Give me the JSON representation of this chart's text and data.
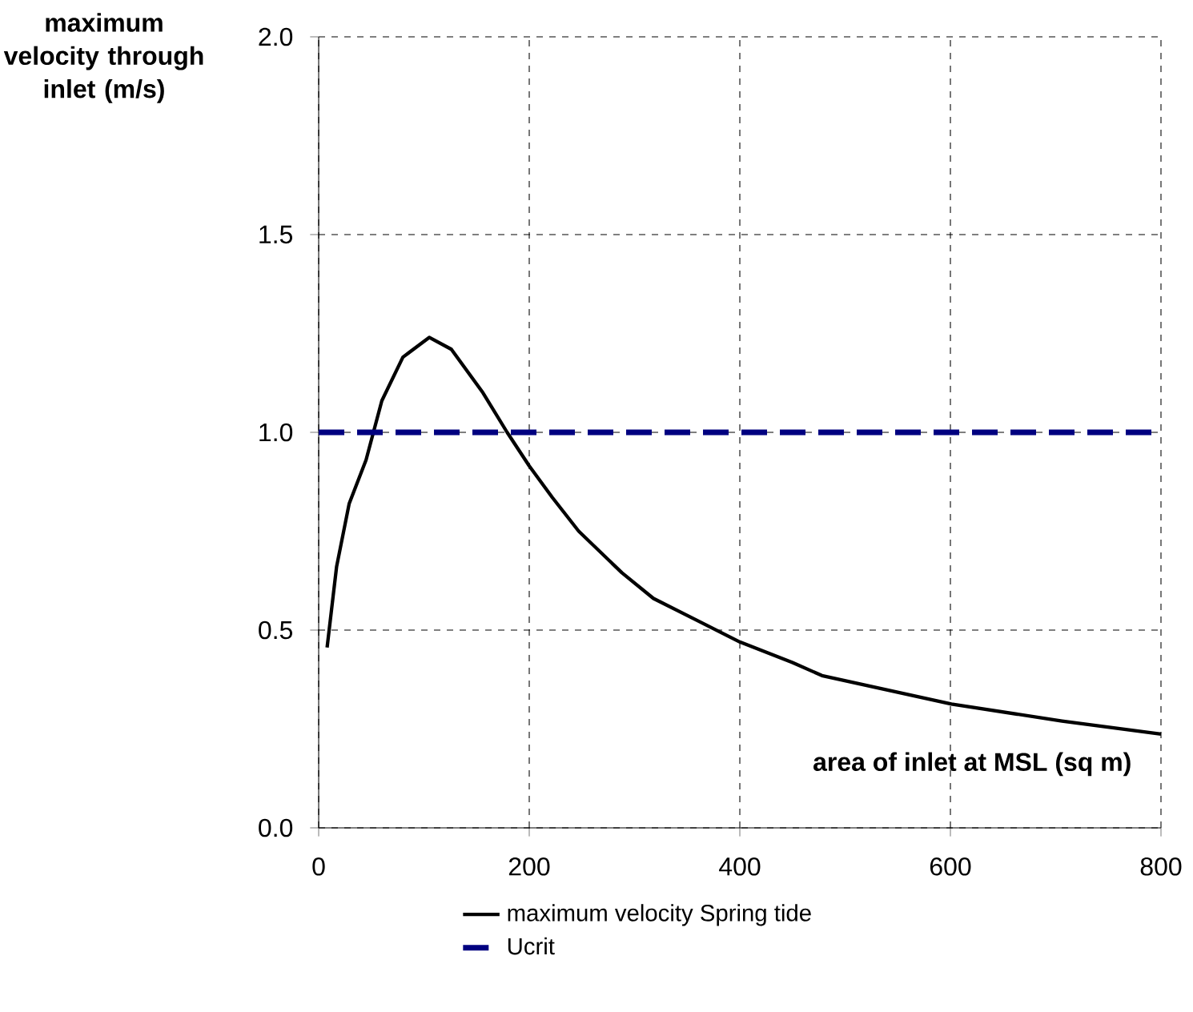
{
  "chart_data": {
    "type": "line",
    "xlabel": "area of inlet at MSL (sq m)",
    "ylabel": "maximum velocity through inlet (m/s)",
    "xlim": [
      0,
      800
    ],
    "xticks": [
      0,
      200,
      400,
      600,
      800
    ],
    "ylim": [
      0,
      2
    ],
    "yticks": [
      {
        "value": 0,
        "label": "0.0"
      },
      {
        "value": 0.5,
        "label": "0.5"
      },
      {
        "value": 1,
        "label": "1.0"
      },
      {
        "value": 1.5,
        "label": "1.5"
      },
      {
        "value": 2,
        "label": "2.0"
      }
    ],
    "grid": true,
    "legend": "bottom",
    "series": [
      {
        "name": "maximum velocity Spring tide",
        "color": "#000000",
        "line_style": "solid",
        "x": [
          8,
          17,
          29,
          45,
          60,
          80,
          105,
          126,
          156,
          179,
          200,
          222,
          247,
          288,
          318,
          359,
          400,
          450,
          478,
          601,
          706,
          800
        ],
        "values": [
          0.456,
          0.66,
          0.82,
          0.93,
          1.08,
          1.19,
          1.24,
          1.21,
          1.1,
          1.0,
          0.915,
          0.835,
          0.75,
          0.645,
          0.58,
          0.525,
          0.47,
          0.418,
          0.385,
          0.313,
          0.27,
          0.237
        ]
      }
    ],
    "ref_lines": [
      {
        "axis": "y",
        "value": 1.0,
        "label": "Ucrit",
        "color": "#000080",
        "line_style": "dashed"
      }
    ]
  }
}
